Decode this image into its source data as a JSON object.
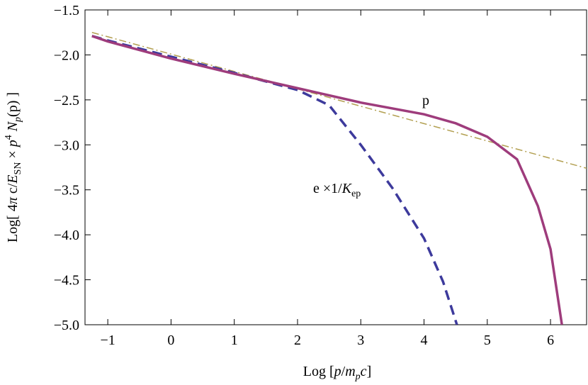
{
  "chart_data": {
    "type": "line",
    "x_label_parts": [
      "Log [",
      "p",
      "/",
      "m",
      "p",
      "c",
      "]"
    ],
    "y_label_parts": [
      "Log[ 4",
      "π",
      " c/",
      "E",
      "SN",
      " × ",
      "p",
      "4",
      " ",
      "N",
      "p",
      "(p) ]"
    ],
    "annotations": [
      {
        "parts": [
          "p"
        ]
      },
      {
        "parts": [
          "e ×1/",
          "K",
          "ep"
        ]
      }
    ],
    "xlim": [
      -1.36,
      6.57
    ],
    "ylim": [
      -5.0,
      -1.5
    ],
    "xticks": [
      {
        "value": -1,
        "label": "−1"
      },
      0,
      1,
      2,
      3,
      4,
      5,
      6
    ],
    "yticks": [
      {
        "value": -1.5,
        "label": "−1.5"
      },
      {
        "value": -2.0,
        "label": "−2.0"
      },
      {
        "value": -2.5,
        "label": "−2.5"
      },
      {
        "value": -3.0,
        "label": "−3.0"
      },
      {
        "value": -3.5,
        "label": "−3.5"
      },
      {
        "value": -4.0,
        "label": "−4.0"
      },
      {
        "value": -4.5,
        "label": "−4.5"
      },
      {
        "value": -5.0,
        "label": "−5.0"
      }
    ],
    "grid": false,
    "series": [
      {
        "color": "#b3a052",
        "style": "dashdot",
        "width": 1.5,
        "x": [
          -1.25,
          6.57
        ],
        "values": [
          -1.75,
          -3.26
        ]
      },
      {
        "color": "#3d3a9c",
        "style": "dashed",
        "width": 3.5,
        "x": [
          -1.25,
          -1.0,
          0,
          1,
          2,
          2.5,
          3,
          3.5,
          4,
          4.3,
          4.52
        ],
        "values": [
          -1.79,
          -1.84,
          -2.02,
          -2.2,
          -2.39,
          -2.56,
          -3.0,
          -3.48,
          -4.04,
          -4.52,
          -5.0
        ]
      },
      {
        "color": "#9e3c7c",
        "style": "solid",
        "width": 3.5,
        "x": [
          -1.25,
          -1.0,
          0,
          1,
          2,
          3,
          4,
          4.5,
          5,
          5.47,
          5.8,
          6.0,
          6.18
        ],
        "values": [
          -1.79,
          -1.85,
          -2.04,
          -2.21,
          -2.37,
          -2.53,
          -2.66,
          -2.76,
          -2.91,
          -3.16,
          -3.68,
          -4.16,
          -5.0
        ]
      }
    ]
  }
}
